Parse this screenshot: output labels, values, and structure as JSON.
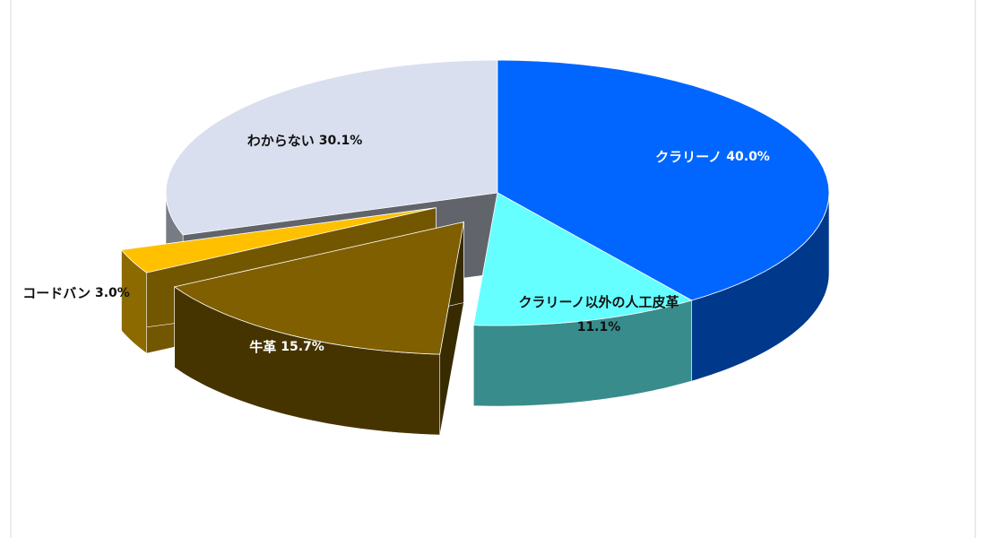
{
  "chart_data": {
    "type": "pie3d",
    "categories": [
      "クラリーノ",
      "クラリーノ以外の人工皮革",
      "牛革",
      "コードバン",
      "わからない"
    ],
    "values": [
      40.0,
      11.1,
      15.7,
      3.0,
      30.1
    ],
    "value_labels": [
      "40.0%",
      "11.1%",
      "15.7%",
      "3.0%",
      "30.1%"
    ],
    "colors": [
      "#0066ff",
      "#66ffff",
      "#7f5f00",
      "#ffc000",
      "#d9dfee"
    ]
  }
}
